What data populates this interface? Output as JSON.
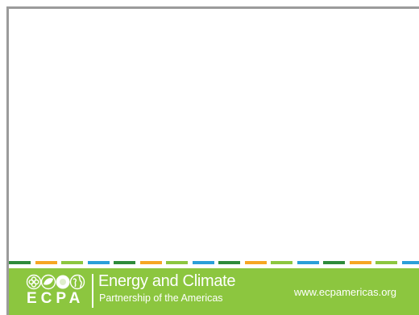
{
  "footer": {
    "acronym": "ECPA",
    "org_name": "Energy and Climate",
    "org_subtitle": "Partnership of the Americas",
    "website": "www.ecpamericas.org",
    "logo_icons": [
      "flower-icon",
      "leaf-icon",
      "sun-icon",
      "globe-icon"
    ],
    "background_color": "#8cc63f"
  },
  "stripe_colors": [
    "#2e8b3a",
    "#f6a623",
    "#8cc63f",
    "#2a9fd8",
    "#2e8b3a",
    "#f6a623",
    "#8cc63f",
    "#2a9fd8",
    "#2e8b3a",
    "#f6a623",
    "#8cc63f",
    "#2a9fd8",
    "#2e8b3a",
    "#f6a623",
    "#8cc63f",
    "#2a9fd8"
  ]
}
